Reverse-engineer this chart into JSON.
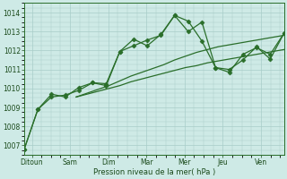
{
  "background_color": "#ceeae6",
  "grid_color": "#a8cdc8",
  "line_color": "#2a6e2a",
  "x_labels": [
    "Ditoun",
    "Sam",
    "Dim",
    "Mar",
    "Mer",
    "Jeu",
    "Ven"
  ],
  "xlabel": "Pression niveau de la mer( hPa )",
  "ylim": [
    1006.5,
    1014.5
  ],
  "yticks": [
    1007,
    1008,
    1009,
    1010,
    1011,
    1012,
    1013,
    1014
  ],
  "marker": "D",
  "marker_size": 2.5,
  "linewidth": 0.9,
  "series_zigzag1": [
    1006.8,
    1008.9,
    1009.55,
    1009.65,
    1009.9,
    1010.3,
    1010.15,
    1011.95,
    1012.25,
    1012.55,
    1012.8,
    1013.85,
    1013.55,
    1012.5,
    1011.1,
    1010.85,
    1011.8,
    1012.15,
    1011.8,
    1012.9
  ],
  "series_zigzag2": [
    1006.8,
    1008.9,
    1009.7,
    1009.55,
    1010.05,
    1010.3,
    1010.25,
    1011.95,
    1012.6,
    1012.25,
    1012.85,
    1013.85,
    1013.0,
    1013.5,
    1011.1,
    1011.0,
    1011.5,
    1012.2,
    1011.55,
    1012.9
  ],
  "series_trend1": [
    1009.55,
    1009.75,
    1009.95,
    1010.15,
    1010.4,
    1010.65,
    1010.85,
    1011.05,
    1011.25,
    1011.5,
    1011.7,
    1011.9,
    1012.05,
    1012.2,
    1012.3,
    1012.4,
    1012.5,
    1012.6,
    1012.7,
    1012.8
  ],
  "series_trend2": [
    1009.55,
    1009.7,
    1009.85,
    1010.0,
    1010.15,
    1010.35,
    1010.5,
    1010.65,
    1010.8,
    1010.95,
    1011.1,
    1011.2,
    1011.35,
    1011.45,
    1011.55,
    1011.65,
    1011.75,
    1011.85,
    1011.95,
    1012.05
  ],
  "n_zigzag": 20,
  "n_trend": 20,
  "x_start_zigzag": 0,
  "x_end_zigzag": 17,
  "x_start_trend": 3.4,
  "x_end_trend": 17,
  "x_tick_positions": [
    0.5,
    3.0,
    5.5,
    8.0,
    10.5,
    13.0,
    15.5
  ],
  "x_lim": [
    0,
    17
  ]
}
